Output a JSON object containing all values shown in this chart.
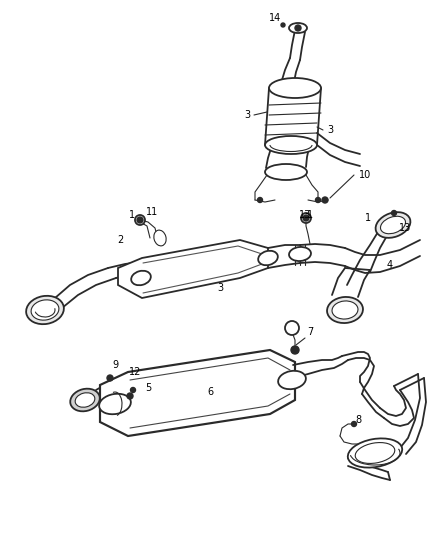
{
  "bg_color": "#ffffff",
  "line_color": "#2a2a2a",
  "lw_main": 1.3,
  "lw_thin": 0.8,
  "fontsize": 7
}
